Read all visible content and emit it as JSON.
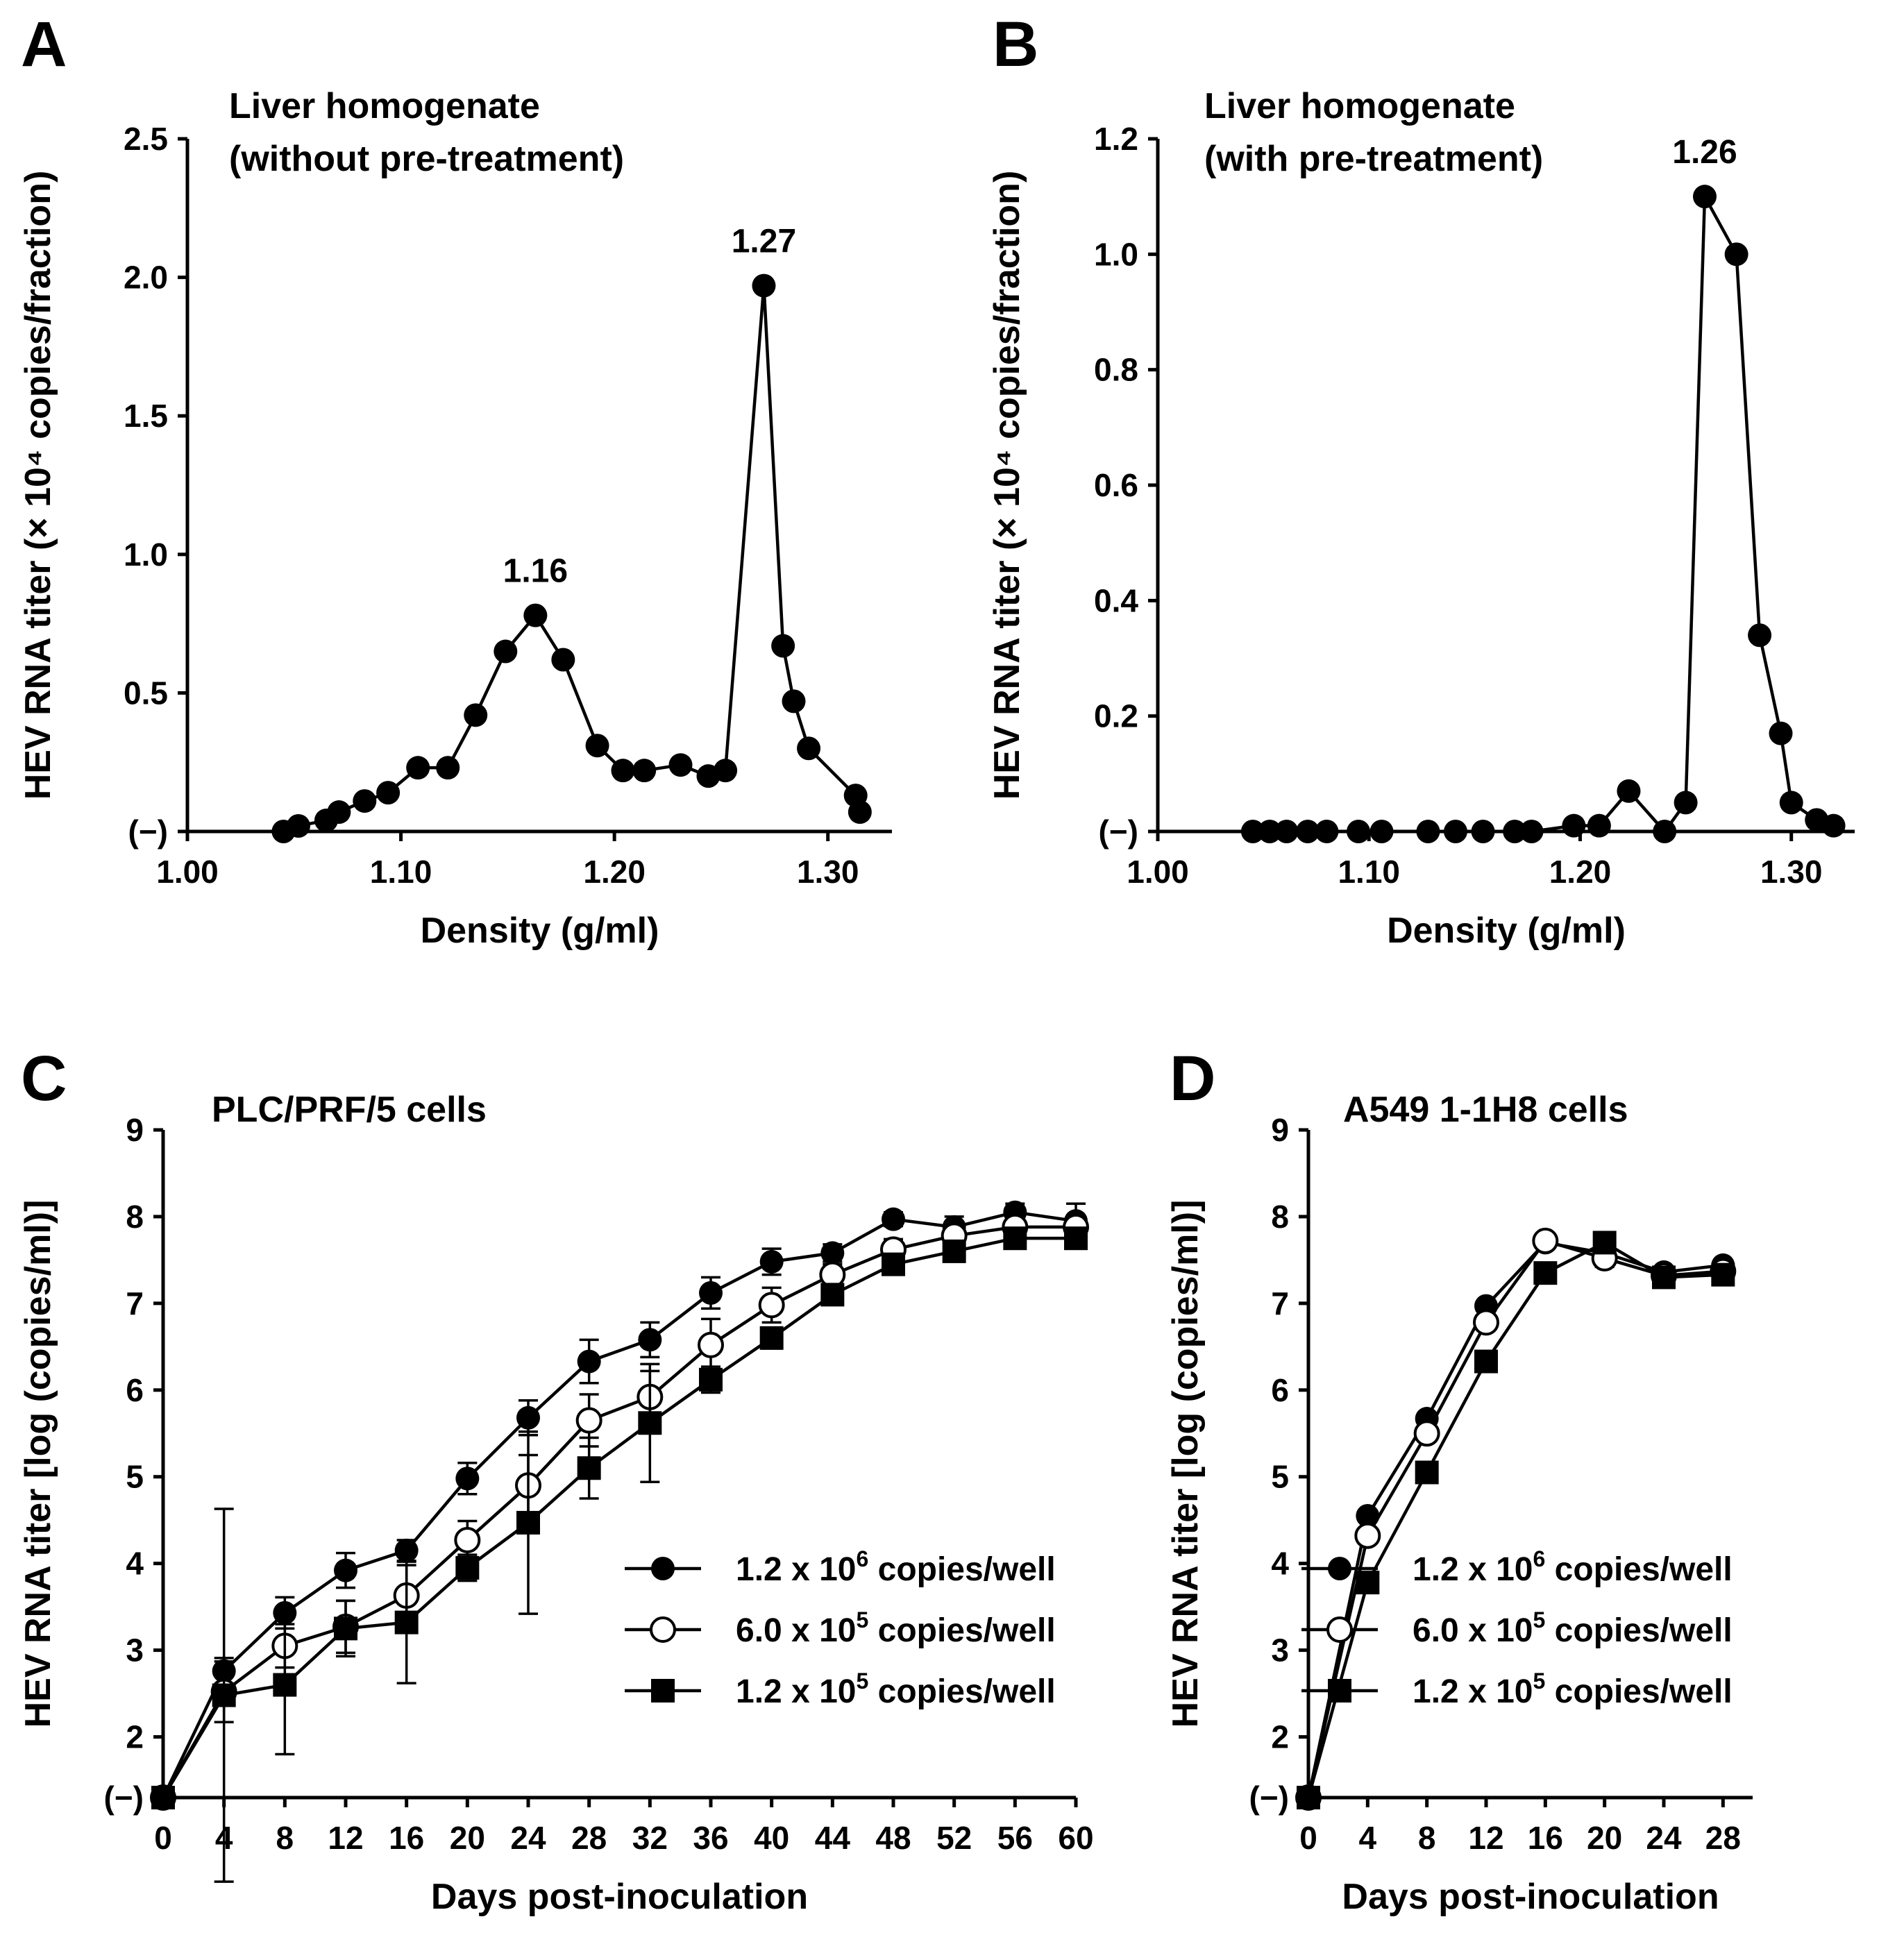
{
  "chart_data": [
    {
      "id": "A",
      "type": "line",
      "panel_label": "A",
      "title": [
        "Liver homogenate",
        "(without pre-treatment)"
      ],
      "xlabel": "Density (g/ml)",
      "ylabel": "HEV RNA titer (× 10⁴ copies/fraction)",
      "xlim": [
        1.0,
        1.33
      ],
      "ylim": [
        0,
        2.5
      ],
      "xticks": [
        1.0,
        1.1,
        1.2,
        1.3
      ],
      "xtick_labels": [
        "1.00",
        "1.10",
        "1.20",
        "1.30"
      ],
      "yticks": [
        0,
        0.5,
        1.0,
        1.5,
        2.0,
        2.5
      ],
      "ytick_labels": [
        "(−)",
        "0.5",
        "1.0",
        "1.5",
        "2.0",
        "2.5"
      ],
      "peak_labels": [
        {
          "text": "1.16",
          "x": 1.163,
          "y": 0.78
        },
        {
          "text": "1.27",
          "x": 1.27,
          "y": 1.97
        }
      ],
      "series": [
        {
          "name": "liver-homogenate-without-pretreatment",
          "marker": "filled-circle",
          "x": [
            1.045,
            1.052,
            1.065,
            1.071,
            1.083,
            1.094,
            1.108,
            1.122,
            1.135,
            1.149,
            1.163,
            1.176,
            1.192,
            1.204,
            1.214,
            1.231,
            1.244,
            1.252,
            1.27,
            1.279,
            1.284,
            1.291,
            1.313,
            1.315
          ],
          "y": [
            0.0,
            0.02,
            0.04,
            0.07,
            0.11,
            0.14,
            0.23,
            0.23,
            0.42,
            0.65,
            0.78,
            0.62,
            0.31,
            0.22,
            0.22,
            0.24,
            0.2,
            0.22,
            1.97,
            0.67,
            0.47,
            0.3,
            0.13,
            0.07
          ]
        }
      ]
    },
    {
      "id": "B",
      "type": "line",
      "panel_label": "B",
      "title": [
        "Liver homogenate",
        "(with pre-treatment)"
      ],
      "xlabel": "Density (g/ml)",
      "ylabel": "HEV RNA titer (× 10⁴ copies/fraction)",
      "xlim": [
        1.0,
        1.33
      ],
      "ylim": [
        0,
        1.2
      ],
      "xticks": [
        1.0,
        1.1,
        1.2,
        1.3
      ],
      "xtick_labels": [
        "1.00",
        "1.10",
        "1.20",
        "1.30"
      ],
      "yticks": [
        0,
        0.2,
        0.4,
        0.6,
        0.8,
        1.0,
        1.2
      ],
      "ytick_labels": [
        "(−)",
        "0.2",
        "0.4",
        "0.6",
        "0.8",
        "1.0",
        "1.2"
      ],
      "peak_labels": [
        {
          "text": "1.26",
          "x": 1.259,
          "y": 1.1
        }
      ],
      "series": [
        {
          "name": "liver-homogenate-with-pretreatment",
          "marker": "filled-circle",
          "x": [
            1.045,
            1.053,
            1.061,
            1.071,
            1.08,
            1.095,
            1.106,
            1.128,
            1.141,
            1.154,
            1.169,
            1.177,
            1.197,
            1.209,
            1.223,
            1.24,
            1.25,
            1.259,
            1.274,
            1.285,
            1.295,
            1.3,
            1.312,
            1.32
          ],
          "y": [
            0.0,
            0.0,
            0.0,
            0.0,
            0.0,
            0.0,
            0.0,
            0.0,
            0.0,
            0.0,
            0.0,
            0.0,
            0.01,
            0.01,
            0.07,
            0.0,
            0.05,
            1.1,
            1.0,
            0.34,
            0.17,
            0.05,
            0.02,
            0.01
          ]
        }
      ]
    },
    {
      "id": "C",
      "type": "line",
      "panel_label": "C",
      "title": [
        "PLC/PRF/5 cells"
      ],
      "xlabel": "Days post-inoculation",
      "ylabel": "HEV RNA titer [log (copies/ml)]",
      "xlim": [
        0,
        60
      ],
      "ylim": [
        1.3,
        9
      ],
      "xticks": [
        0,
        4,
        8,
        12,
        16,
        20,
        24,
        28,
        32,
        36,
        40,
        44,
        48,
        52,
        56,
        60
      ],
      "xtick_labels": [
        "0",
        "4",
        "8",
        "12",
        "16",
        "20",
        "24",
        "28",
        "32",
        "36",
        "40",
        "44",
        "48",
        "52",
        "56",
        "60"
      ],
      "yticks": [
        1.3,
        2,
        3,
        4,
        5,
        6,
        7,
        8,
        9
      ],
      "ytick_labels": [
        "(−)",
        "2",
        "3",
        "4",
        "5",
        "6",
        "7",
        "8",
        "9"
      ],
      "detection_limit": 1.3,
      "legend_position": "lower-right",
      "series": [
        {
          "name": "1.2 x 10",
          "exp": "6",
          "suffix": " copies/well",
          "marker": "filled-circle",
          "x": [
            0,
            4,
            8,
            12,
            16,
            20,
            24,
            28,
            32,
            36,
            40,
            44,
            48,
            52,
            56,
            60
          ],
          "y": [
            1.3,
            2.76,
            3.43,
            3.92,
            4.15,
            4.98,
            5.68,
            6.33,
            6.58,
            7.12,
            7.48,
            7.58,
            7.97,
            7.88,
            8.05,
            7.95
          ],
          "err": [
            0,
            0.15,
            0.18,
            0.2,
            0.12,
            0.18,
            0.2,
            0.25,
            0.2,
            0.18,
            0.15,
            0.1,
            0.08,
            0.12,
            0.1,
            0.2
          ]
        },
        {
          "name": "6.0 x 10",
          "exp": "5",
          "suffix": " copies/well",
          "marker": "open-circle",
          "x": [
            0,
            4,
            8,
            12,
            16,
            20,
            24,
            28,
            32,
            36,
            40,
            44,
            48,
            52,
            56,
            60
          ],
          "y": [
            1.3,
            2.52,
            3.05,
            3.27,
            3.63,
            4.27,
            4.9,
            5.65,
            5.92,
            6.52,
            6.98,
            7.33,
            7.62,
            7.78,
            7.88,
            7.88
          ],
          "err": [
            0,
            0.35,
            0.25,
            0.3,
            0.35,
            0.22,
            0.35,
            0.3,
            0.3,
            0.3,
            0.2,
            0.12,
            0.12,
            0.1,
            0.1,
            0.1
          ]
        },
        {
          "name": "1.2 x 10",
          "exp": "5",
          "suffix": " copies/well",
          "marker": "filled-square",
          "x": [
            0,
            4,
            8,
            12,
            16,
            20,
            24,
            28,
            32,
            36,
            40,
            44,
            48,
            52,
            56,
            60
          ],
          "y": [
            1.3,
            2.48,
            2.6,
            3.25,
            3.32,
            3.95,
            4.47,
            5.1,
            5.62,
            6.12,
            6.6,
            7.1,
            7.45,
            7.6,
            7.75,
            7.75
          ],
          "err": [
            0,
            2.15,
            0.8,
            0.32,
            0.7,
            0.15,
            1.05,
            0.35,
            0.68,
            0.15,
            0.12,
            0.1,
            0.1,
            0.08,
            0.08,
            0.08
          ]
        }
      ]
    },
    {
      "id": "D",
      "type": "line",
      "panel_label": "D",
      "title": [
        "A549 1-1H8 cells"
      ],
      "xlabel": "Days post-inoculation",
      "ylabel": "HEV RNA titer [log (copies/ml)]",
      "xlim": [
        0,
        30
      ],
      "ylim": [
        1.3,
        9
      ],
      "xticks": [
        0,
        4,
        8,
        12,
        16,
        20,
        24,
        28
      ],
      "xtick_labels": [
        "0",
        "4",
        "8",
        "12",
        "16",
        "20",
        "24",
        "28"
      ],
      "yticks": [
        1.3,
        2,
        3,
        4,
        5,
        6,
        7,
        8,
        9
      ],
      "ytick_labels": [
        "(−)",
        "2",
        "3",
        "4",
        "5",
        "6",
        "7",
        "8",
        "9"
      ],
      "detection_limit": 1.3,
      "legend_position": "lower-right",
      "series": [
        {
          "name": "1.2 x 10",
          "exp": "6",
          "suffix": " copies/well",
          "marker": "filled-circle",
          "x": [
            0,
            4,
            8,
            12,
            16,
            20,
            24,
            28
          ],
          "y": [
            1.3,
            4.55,
            5.67,
            6.97,
            7.7,
            7.58,
            7.36,
            7.44
          ],
          "err": [
            0,
            0.05,
            0.05,
            0.06,
            0.05,
            0.08,
            0.05,
            0.05
          ]
        },
        {
          "name": "6.0 x 10",
          "exp": "5",
          "suffix": " copies/well",
          "marker": "open-circle",
          "x": [
            0,
            4,
            8,
            12,
            16,
            20,
            24,
            28
          ],
          "y": [
            1.3,
            4.32,
            5.5,
            6.78,
            7.72,
            7.52,
            7.32,
            7.37
          ],
          "err": [
            0,
            0.05,
            0.05,
            0.05,
            0.05,
            0.1,
            0.05,
            0.05
          ]
        },
        {
          "name": "1.2 x 10",
          "exp": "5",
          "suffix": " copies/well",
          "marker": "filled-square",
          "x": [
            0,
            4,
            8,
            12,
            16,
            20,
            24,
            28
          ],
          "y": [
            1.3,
            3.78,
            5.05,
            6.33,
            7.35,
            7.7,
            7.3,
            7.33
          ],
          "err": [
            0,
            0.05,
            0.05,
            0.05,
            0.05,
            0.08,
            0.05,
            0.05
          ]
        }
      ]
    }
  ]
}
